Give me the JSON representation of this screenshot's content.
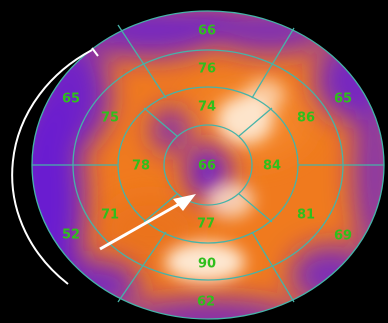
{
  "colors": {
    "background": "#000000",
    "low_uptake": "#6a1fd0",
    "mid_uptake": "#f07a1e",
    "high_uptake": "#fff4e6",
    "segment_lines": "#46b3a8",
    "value_text": "#2fbf1c",
    "arrow": "#ffffff",
    "bracket": "#ffffff"
  },
  "segments": {
    "basal": [
      {
        "id": "basal-anterior",
        "value": "66"
      },
      {
        "id": "basal-anterolateral",
        "value": "65"
      },
      {
        "id": "basal-inferolateral",
        "value": "69"
      },
      {
        "id": "basal-inferior",
        "value": "62"
      },
      {
        "id": "basal-inferoseptal",
        "value": "52"
      },
      {
        "id": "basal-anteroseptal",
        "value": "65"
      }
    ],
    "mid": [
      {
        "id": "mid-anterior",
        "value": "76"
      },
      {
        "id": "mid-anterolateral",
        "value": "86"
      },
      {
        "id": "mid-inferolateral",
        "value": "81"
      },
      {
        "id": "mid-inferior",
        "value": "90"
      },
      {
        "id": "mid-inferoseptal",
        "value": "71"
      },
      {
        "id": "mid-anteroseptal",
        "value": "75"
      }
    ],
    "apical": [
      {
        "id": "apical-anterior",
        "value": "74"
      },
      {
        "id": "apical-lateral",
        "value": "84"
      },
      {
        "id": "apical-inferior",
        "value": "77"
      },
      {
        "id": "apical-septal",
        "value": "78"
      }
    ],
    "apex": {
      "id": "apex",
      "value": "66"
    }
  }
}
